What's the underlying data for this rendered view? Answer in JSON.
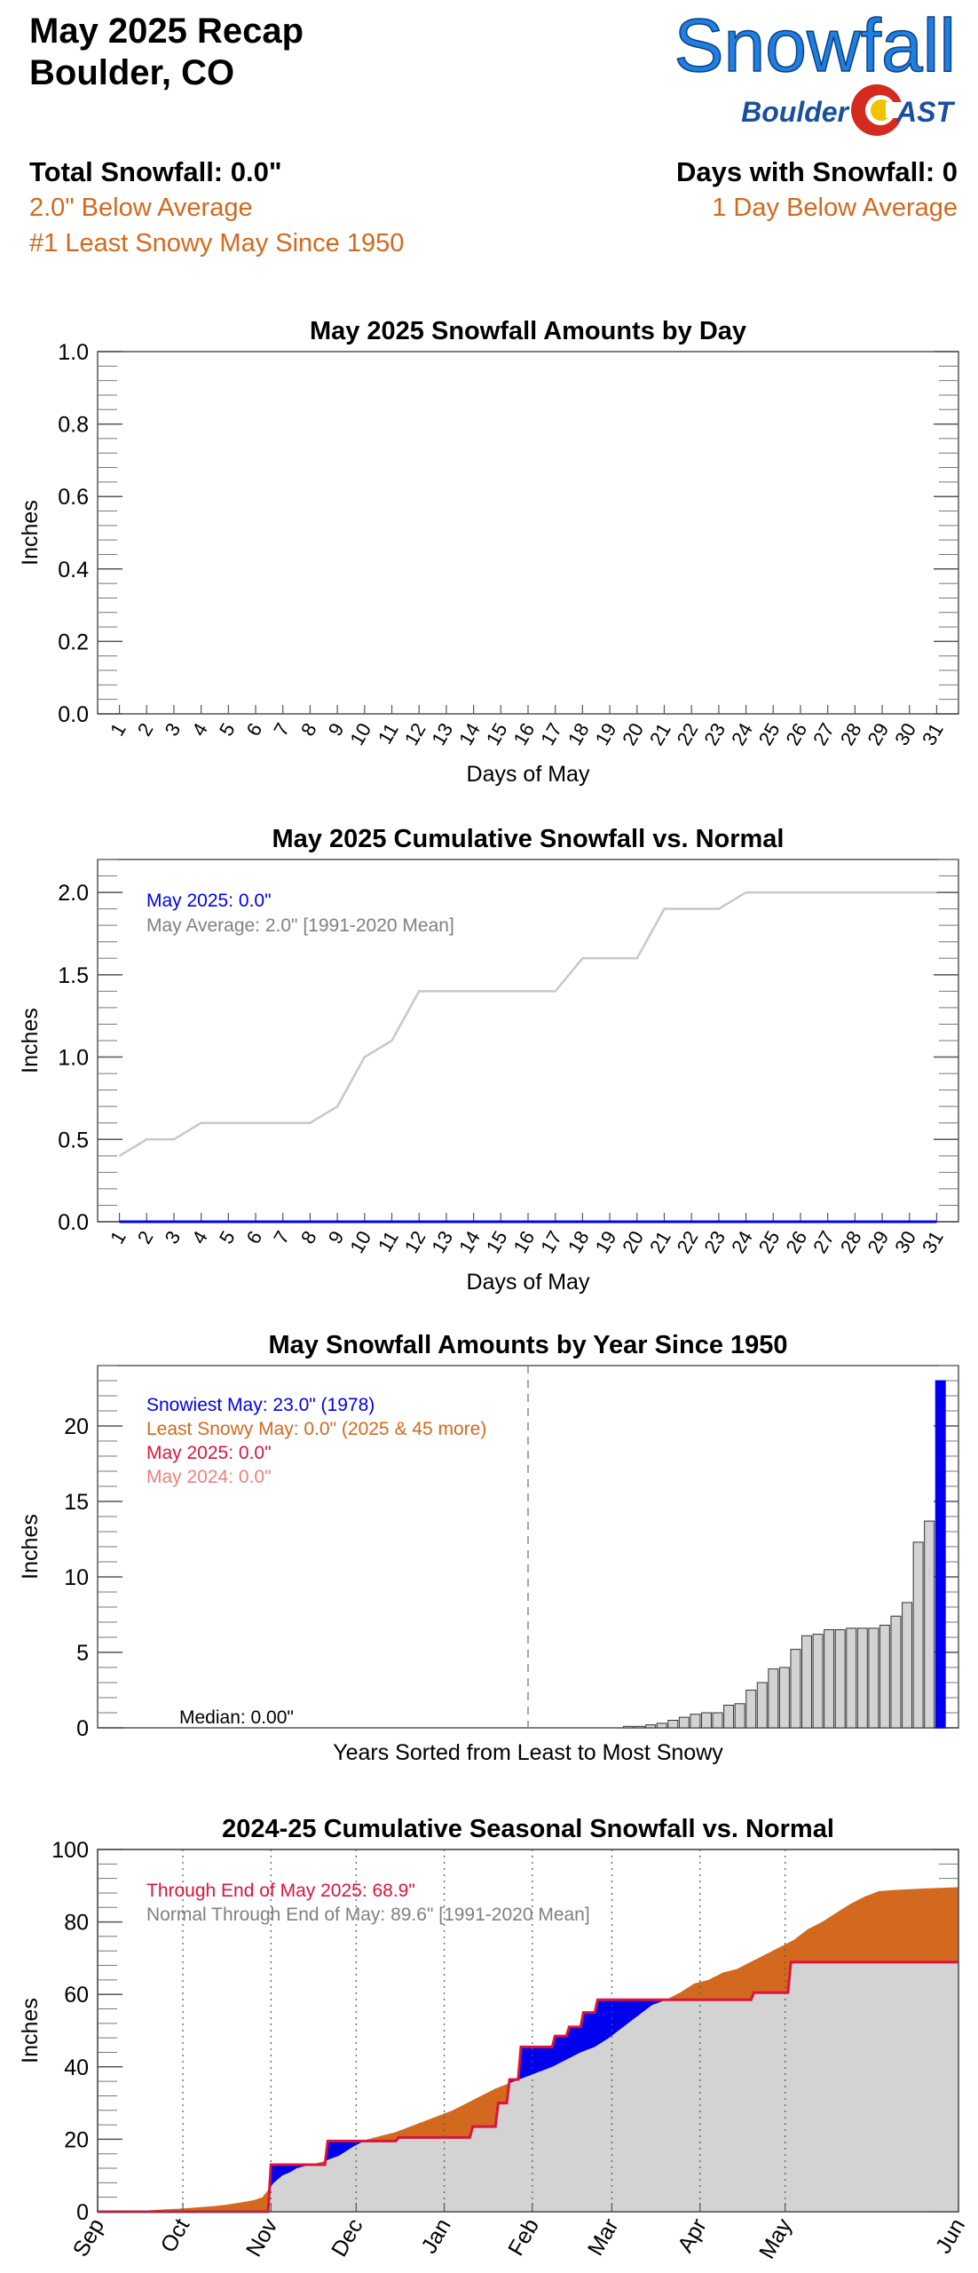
{
  "header": {
    "title_line1": "May 2025 Recap",
    "title_line2": "Boulder, CO",
    "logo_main": "Snowfall",
    "logo_sub_left": "Boulder",
    "logo_sub_right": "AST",
    "total_label": "Total Snowfall: 0.0\"",
    "total_vs_avg": "2.0\" Below Average",
    "rank": "#1 Least Snowy May Since 1950",
    "days_label": "Days with Snowfall: 0",
    "days_vs_avg": "1 Day Below Average"
  },
  "colors": {
    "orange": "#d2691e",
    "blue": "#0000ee",
    "crimson": "#dc143c",
    "pink": "#f08080",
    "gray_line": "#c8c8c8",
    "gray_fill": "#d3d3d3",
    "logo_blue": "#1f7fe0",
    "logo_navy": "#1a4fa0"
  },
  "chart_data": [
    {
      "type": "bar",
      "title": "May 2025 Snowfall Amounts by Day",
      "xlabel": "Days of May",
      "ylabel": "Inches",
      "ylim": [
        0,
        1.0
      ],
      "yticks": [
        "0.0",
        "0.2",
        "0.4",
        "0.6",
        "0.8",
        "1.0"
      ],
      "categories": [
        "1",
        "2",
        "3",
        "4",
        "5",
        "6",
        "7",
        "8",
        "9",
        "10",
        "11",
        "12",
        "13",
        "14",
        "15",
        "16",
        "17",
        "18",
        "19",
        "20",
        "21",
        "22",
        "23",
        "24",
        "25",
        "26",
        "27",
        "28",
        "29",
        "30",
        "31"
      ],
      "values": [
        0,
        0,
        0,
        0,
        0,
        0,
        0,
        0,
        0,
        0,
        0,
        0,
        0,
        0,
        0,
        0,
        0,
        0,
        0,
        0,
        0,
        0,
        0,
        0,
        0,
        0,
        0,
        0,
        0,
        0,
        0
      ]
    },
    {
      "type": "line",
      "title": "May 2025 Cumulative Snowfall vs. Normal",
      "xlabel": "Days of May",
      "ylabel": "Inches",
      "ylim": [
        0,
        2.2
      ],
      "yticks": [
        "0.0",
        "0.5",
        "1.0",
        "1.5",
        "2.0"
      ],
      "categories": [
        "1",
        "2",
        "3",
        "4",
        "5",
        "6",
        "7",
        "8",
        "9",
        "10",
        "11",
        "12",
        "13",
        "14",
        "15",
        "16",
        "17",
        "18",
        "19",
        "20",
        "21",
        "22",
        "23",
        "24",
        "25",
        "26",
        "27",
        "28",
        "29",
        "30",
        "31"
      ],
      "legend": [
        "May 2025: 0.0\"",
        "May Average: 2.0\" [1991-2020 Mean]"
      ],
      "series": [
        {
          "values": [
            0,
            0,
            0,
            0,
            0,
            0,
            0,
            0,
            0,
            0,
            0,
            0,
            0,
            0,
            0,
            0,
            0,
            0,
            0,
            0,
            0,
            0,
            0,
            0,
            0,
            0,
            0,
            0,
            0,
            0,
            0
          ]
        },
        {
          "values": [
            0.4,
            0.5,
            0.5,
            0.6,
            0.6,
            0.6,
            0.6,
            0.6,
            0.7,
            1.0,
            1.1,
            1.4,
            1.4,
            1.4,
            1.4,
            1.4,
            1.4,
            1.6,
            1.6,
            1.6,
            1.9,
            1.9,
            1.9,
            2.0,
            2.0,
            2.0,
            2.0,
            2.0,
            2.0,
            2.0,
            2.0
          ]
        }
      ]
    },
    {
      "type": "bar",
      "title": "May Snowfall Amounts by Year Since 1950",
      "xlabel": "Years Sorted from Least to Most Snowy",
      "ylabel": "Inches",
      "ylim": [
        0,
        24
      ],
      "yticks": [
        "0",
        "5",
        "10",
        "15",
        "20"
      ],
      "legend": [
        "Snowiest May: 23.0\" (1978)",
        "Least Snowy May: 0.0\" (2025 & 45 more)",
        "May 2025: 0.0\"",
        "May 2024: 0.0\""
      ],
      "median_label": "Median: 0.00\"",
      "values": [
        0,
        0,
        0,
        0,
        0,
        0,
        0,
        0,
        0,
        0,
        0,
        0,
        0,
        0,
        0,
        0,
        0,
        0,
        0,
        0,
        0,
        0,
        0,
        0,
        0,
        0,
        0,
        0,
        0,
        0,
        0,
        0,
        0,
        0,
        0,
        0,
        0,
        0,
        0,
        0,
        0,
        0,
        0,
        0,
        0,
        0,
        0.1,
        0.1,
        0.2,
        0.3,
        0.5,
        0.7,
        0.9,
        1.0,
        1.0,
        1.5,
        1.6,
        2.5,
        3.0,
        3.9,
        4.0,
        5.2,
        6.1,
        6.2,
        6.5,
        6.5,
        6.6,
        6.6,
        6.6,
        6.8,
        7.4,
        8.3,
        12.3,
        13.7,
        23.0
      ]
    },
    {
      "type": "area",
      "title": "2024-25 Cumulative Seasonal Snowfall vs. Normal",
      "ylabel": "Inches",
      "ylim": [
        0,
        100
      ],
      "yticks": [
        "0",
        "20",
        "40",
        "60",
        "80",
        "100"
      ],
      "months": [
        "Sep",
        "Oct",
        "Nov",
        "Dec",
        "Jan",
        "Feb",
        "Mar",
        "Apr",
        "May",
        "Jun"
      ],
      "legend": [
        "Through End of May 2025: 68.9\"",
        "Normal Through End of May: 89.6\" [1991-2020 Mean]"
      ],
      "normal": [
        [
          0,
          0
        ],
        [
          15,
          0.2
        ],
        [
          20,
          0.5
        ],
        [
          25,
          0.7
        ],
        [
          30,
          0.9
        ],
        [
          35,
          1.2
        ],
        [
          40,
          1.5
        ],
        [
          45,
          1.9
        ],
        [
          50,
          2.5
        ],
        [
          55,
          3.2
        ],
        [
          58,
          4
        ],
        [
          60,
          6
        ],
        [
          62,
          8
        ],
        [
          65,
          10
        ],
        [
          68,
          11
        ],
        [
          70,
          12
        ],
        [
          75,
          13
        ],
        [
          80,
          14
        ],
        [
          85,
          15.5
        ],
        [
          90,
          18
        ],
        [
          95,
          20
        ],
        [
          100,
          21
        ],
        [
          105,
          22
        ],
        [
          110,
          23.5
        ],
        [
          115,
          25
        ],
        [
          120,
          26.5
        ],
        [
          125,
          28
        ],
        [
          130,
          30
        ],
        [
          135,
          32
        ],
        [
          140,
          34
        ],
        [
          145,
          35.5
        ],
        [
          150,
          37
        ],
        [
          155,
          38.5
        ],
        [
          160,
          40
        ],
        [
          165,
          42
        ],
        [
          170,
          44
        ],
        [
          175,
          45.5
        ],
        [
          180,
          48
        ],
        [
          185,
          51
        ],
        [
          190,
          54
        ],
        [
          195,
          57
        ],
        [
          200,
          58.5
        ],
        [
          205,
          60.5
        ],
        [
          210,
          63
        ],
        [
          215,
          64
        ],
        [
          220,
          66
        ],
        [
          225,
          67
        ],
        [
          230,
          69
        ],
        [
          235,
          71
        ],
        [
          240,
          73
        ],
        [
          245,
          75
        ],
        [
          250,
          78
        ],
        [
          255,
          80
        ],
        [
          260,
          82.5
        ],
        [
          265,
          85
        ],
        [
          270,
          87
        ],
        [
          275,
          88.5
        ],
        [
          280,
          88.8
        ],
        [
          285,
          89
        ],
        [
          290,
          89.2
        ],
        [
          300,
          89.5
        ],
        [
          303,
          89.6
        ]
      ],
      "actual": [
        [
          0,
          0
        ],
        [
          60,
          0
        ],
        [
          61,
          13
        ],
        [
          80,
          13
        ],
        [
          81,
          19.5
        ],
        [
          105,
          19.5
        ],
        [
          106,
          20.5
        ],
        [
          131,
          20.5
        ],
        [
          132,
          23.5
        ],
        [
          140,
          23.5
        ],
        [
          141,
          30
        ],
        [
          144,
          30
        ],
        [
          145,
          36.5
        ],
        [
          148,
          36.5
        ],
        [
          149,
          45.5
        ],
        [
          160,
          45.5
        ],
        [
          161,
          48.5
        ],
        [
          165,
          48.5
        ],
        [
          166,
          51
        ],
        [
          170,
          51
        ],
        [
          171,
          55
        ],
        [
          175,
          55
        ],
        [
          176,
          58.5
        ],
        [
          230,
          58.5
        ],
        [
          231,
          60.5
        ],
        [
          243,
          60.5
        ],
        [
          244,
          68.9
        ],
        [
          303,
          68.9
        ]
      ]
    }
  ]
}
